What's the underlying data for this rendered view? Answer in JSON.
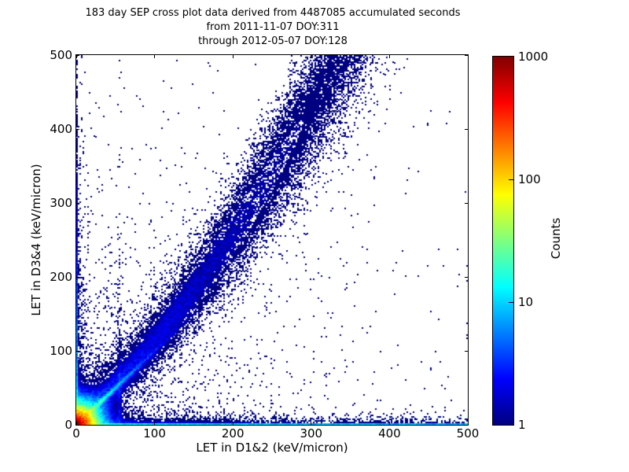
{
  "chart_data": {
    "type": "heatmap",
    "title_lines": [
      "183 day SEP cross plot data derived from 4487085 accumulated seconds",
      "from 2011-11-07 DOY:311",
      "through 2012-05-07 DOY:128"
    ],
    "xlabel": "LET in D1&2 (keV/micron)",
    "ylabel": "LET in D3&4 (keV/micron)",
    "xlim": [
      0,
      500
    ],
    "ylim": [
      0,
      500
    ],
    "xticks": [
      0,
      100,
      200,
      300,
      400,
      500
    ],
    "yticks": [
      0,
      100,
      200,
      300,
      400,
      500
    ],
    "grid": false,
    "legend": null,
    "point_color_low": "#000080",
    "background_color": "#ffffff",
    "colorbar": {
      "label": "Counts",
      "scale": "log",
      "range": [
        1,
        1000
      ],
      "ticks": [
        1,
        10,
        100,
        1000
      ],
      "colormap": "jet",
      "colormap_stops": [
        {
          "pos": 0.0,
          "color": "#000080"
        },
        {
          "pos": 0.125,
          "color": "#0000ff"
        },
        {
          "pos": 0.375,
          "color": "#00ffff"
        },
        {
          "pos": 0.625,
          "color": "#ffff00"
        },
        {
          "pos": 0.875,
          "color": "#ff0000"
        },
        {
          "pos": 1.0,
          "color": "#800000"
        }
      ]
    },
    "bins": 250,
    "bin_size_units": 2,
    "seed": 20120507,
    "density_components": [
      {
        "name": "origin-hotspot",
        "type": "radial",
        "amp": 1400,
        "scale": 7,
        "power": 1
      },
      {
        "name": "origin-halo",
        "type": "radial",
        "amp": 2.5,
        "scale": 28,
        "power": 1
      },
      {
        "name": "identity-ridge",
        "type": "diag",
        "amp": 45,
        "slope": 1.0,
        "width": 2.2,
        "along_decay": 40
      },
      {
        "name": "inner-fan",
        "type": "diag",
        "amp": 1.0,
        "slope": 1.7,
        "width": 13,
        "along_decay": 100
      },
      {
        "name": "ion-track-band",
        "type": "curved_band",
        "amp": 2.8,
        "curve": 700,
        "width0": 6,
        "width_growth": 0.15,
        "x_decay": 280
      },
      {
        "name": "left-edge-column",
        "type": "edge_x",
        "amp": 14,
        "scale": 1.6,
        "decay": 150,
        "gauss": true
      },
      {
        "name": "left-edge-speckle",
        "type": "edge_x",
        "amp": 2.0,
        "scale": 6,
        "decay": 160,
        "gauss": false
      },
      {
        "name": "bottom-edge-row",
        "type": "edge_y",
        "amp": 14,
        "scale": 1.6,
        "decay": 1500,
        "gauss": true
      },
      {
        "name": "bottom-edge-speckle",
        "type": "edge_y",
        "amp": 3.2,
        "scale": 6,
        "decay": 300,
        "gauss": false
      },
      {
        "name": "vertical-streak",
        "type": "vline",
        "amp": 1.5,
        "x0": 55,
        "width": 2.5,
        "decay": 110
      },
      {
        "name": "background-scatter",
        "type": "radial_floor",
        "amp": 0.3,
        "scale": 100,
        "floor": 0.0025
      }
    ]
  }
}
